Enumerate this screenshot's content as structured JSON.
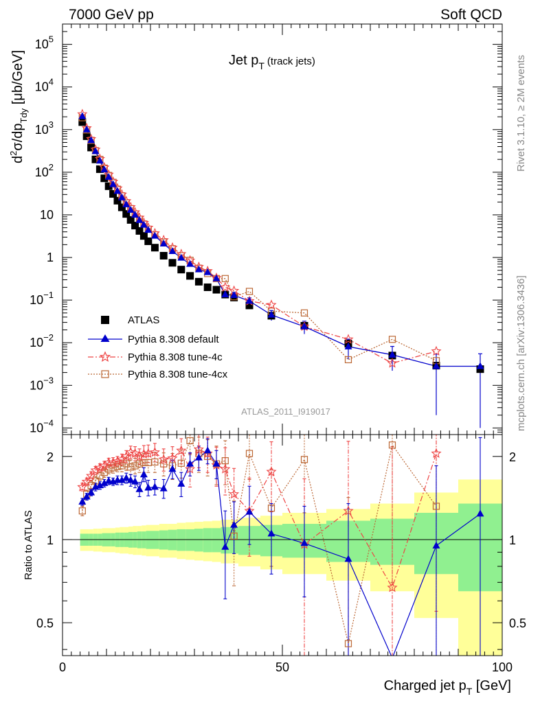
{
  "header": {
    "left": "7000 GeV pp",
    "right": "Soft QCD"
  },
  "side_labels": {
    "rivet": "Rivet 3.1.10, ≥ 2M events",
    "mcplots": "mcplots.cern.ch [arXiv:1306.3436]"
  },
  "colors": {
    "atlas": "#000000",
    "default": "#0000cc",
    "tune4c": "#ee4444",
    "tune4cx": "#bb6633",
    "band_inner": "#90f090",
    "band_outer": "#ffff99"
  },
  "chart_data": [
    {
      "type": "scatter",
      "panel": "main",
      "title": "Jet p_T (track jets)",
      "title_main": "Jet p",
      "title_sub": "T",
      "title_note": "(track jets)",
      "analysis_label": "ATLAS_2011_I919017",
      "ylabel": "d²σ/dp_Tdy [μb/GeV]",
      "ylabel_parts": [
        "d",
        "2",
        "σ/dp",
        "Tdy",
        " [μb/GeV]"
      ],
      "yscale": "log",
      "xlim": [
        0,
        100
      ],
      "ylim": [
        7e-05,
        300000
      ],
      "y_ticks": [
        {
          "value": 100000,
          "mant": "10",
          "exp": "5"
        },
        {
          "value": 10000,
          "mant": "10",
          "exp": "4"
        },
        {
          "value": 1000,
          "mant": "10",
          "exp": "3"
        },
        {
          "value": 100,
          "mant": "10",
          "exp": "2"
        },
        {
          "value": 10,
          "mant": "10",
          "exp": ""
        },
        {
          "value": 1,
          "mant": "1",
          "exp": ""
        },
        {
          "value": 0.1,
          "mant": "10",
          "exp": "−1"
        },
        {
          "value": 0.01,
          "mant": "10",
          "exp": "−2"
        },
        {
          "value": 0.001,
          "mant": "10",
          "exp": "−3"
        },
        {
          "value": 0.0001,
          "mant": "10",
          "exp": "−4"
        }
      ],
      "legend_position": "bottom-left",
      "x": [
        4.5,
        5.5,
        6.5,
        7.5,
        8.5,
        9.5,
        10.5,
        11.5,
        12.5,
        13.5,
        14.5,
        15.5,
        16.5,
        17.5,
        18.5,
        19.5,
        21,
        23,
        25,
        27,
        29,
        31,
        33,
        35,
        37,
        39,
        42.5,
        47.5,
        55,
        65,
        75,
        85,
        95
      ],
      "series": [
        {
          "name": "ATLAS",
          "key": "atlas",
          "marker": "square",
          "values": [
            1500,
            700,
            380,
            200,
            118,
            72,
            47,
            31,
            21.5,
            15,
            10.5,
            7.6,
            5.6,
            4.2,
            3.2,
            2.4,
            1.7,
            1.1,
            0.75,
            0.52,
            0.37,
            0.27,
            0.2,
            0.175,
            0.135,
            0.115,
            0.075,
            0.043,
            0.025,
            0.0095,
            0.005,
            0.0029,
            0.0024
          ]
        },
        {
          "name": "Pythia 8.308 default",
          "key": "default",
          "marker": "triangle",
          "values": [
            2050,
            1000,
            560,
            310,
            185,
            115,
            77,
            52,
            36,
            25.5,
            17.5,
            13,
            10,
            7.5,
            5.8,
            4.4,
            3.2,
            2.1,
            1.4,
            0.98,
            0.7,
            0.52,
            0.45,
            0.32,
            0.135,
            0.13,
            0.095,
            0.045,
            0.024,
            0.0081,
            0.0052,
            0.0028,
            0.0028
          ],
          "err_lo": [
            0,
            0,
            0,
            0,
            0,
            0,
            0,
            0,
            0,
            0,
            0,
            0,
            0,
            0,
            0,
            0,
            0,
            0,
            0,
            0,
            0,
            0,
            0,
            0,
            0.025,
            0.02,
            0.018,
            0.012,
            0.008,
            0.004,
            0.003,
            0.0026,
            0.0027
          ],
          "err_hi": [
            0,
            0,
            0,
            0,
            0,
            0,
            0,
            0,
            0,
            0,
            0,
            0,
            0,
            0,
            0,
            0,
            0,
            0,
            0,
            0,
            0,
            0,
            0,
            0,
            0.025,
            0.02,
            0.018,
            0.012,
            0.008,
            0.004,
            0.003,
            0.0026,
            0.0027
          ],
          "ratio": [
            1.37,
            1.43,
            1.48,
            1.55,
            1.57,
            1.6,
            1.63,
            1.62,
            1.64,
            1.64,
            1.67,
            1.64,
            1.62,
            1.52,
            1.72,
            1.54,
            1.55,
            1.53,
            1.8,
            1.59,
            1.88,
            1.98,
            2.1,
            1.88,
            0.94,
            1.13,
            1.26,
            1.05,
            0.97,
            0.85,
            0,
            0.95,
            1.24
          ],
          "ratio_err": [
            0.04,
            0.04,
            0.04,
            0.05,
            0.05,
            0.05,
            0.05,
            0.05,
            0.06,
            0.06,
            0.07,
            0.08,
            0.08,
            0.09,
            0.1,
            0.1,
            0.1,
            0.12,
            0.14,
            0.16,
            0.18,
            0.2,
            0.22,
            0.22,
            0.33,
            0.24,
            0.3,
            0.3,
            0.35,
            0.5,
            0,
            0.9,
            1.1
          ]
        },
        {
          "name": "Pythia 8.308 tune-4c",
          "key": "tune4c",
          "marker": "star",
          "values": [
            2300,
            1080,
            600,
            340,
            205,
            130,
            88,
            60,
            42,
            30,
            21,
            15.2,
            11.5,
            8.6,
            6.5,
            5,
            3.7,
            2.55,
            1.7,
            1.2,
            0.85,
            0.6,
            0.48,
            0.33,
            0.2,
            0.165,
            0.095,
            0.077,
            0.024,
            0.012,
            0.0033,
            0.0063,
            0.0
          ],
          "ratio": [
            1.55,
            1.62,
            1.7,
            1.78,
            1.82,
            1.85,
            1.9,
            1.9,
            1.92,
            1.95,
            2.0,
            2.07,
            2.05,
            2.0,
            2.04,
            2.05,
            2.07,
            1.95,
            1.97,
            2.1,
            1.8,
            2.12,
            2.05,
            1.86,
            1.8,
            1.46,
            1.27,
            1.76,
            0.96,
            1.27,
            0.67,
            2.05,
            0
          ],
          "ratio_err": [
            0.05,
            0.05,
            0.06,
            0.06,
            0.06,
            0.07,
            0.07,
            0.08,
            0.08,
            0.09,
            0.1,
            0.11,
            0.12,
            0.13,
            0.15,
            0.15,
            0.16,
            0.18,
            0.2,
            0.22,
            0.25,
            0.3,
            0.3,
            0.3,
            0.35,
            0.35,
            0.4,
            0.5,
            0.7,
            1.0,
            1.5,
            1.5,
            0
          ]
        },
        {
          "name": "Pythia 8.308 tune-4cx",
          "key": "tune4cx",
          "marker": "open-square",
          "values": [
            1900,
            980,
            560,
            320,
            200,
            125,
            84,
            58,
            40,
            28,
            19,
            14,
            10.5,
            7.9,
            6.1,
            4.6,
            3.4,
            2.3,
            1.6,
            1.1,
            0.86,
            0.56,
            0.42,
            0.32,
            0.32,
            0.12,
            0.16,
            0.055,
            0.05,
            0.004,
            0.012,
            0.0038,
            0
          ],
          "ratio": [
            1.27,
            1.46,
            1.57,
            1.63,
            1.7,
            1.75,
            1.8,
            1.82,
            1.84,
            1.85,
            1.88,
            1.83,
            1.85,
            1.88,
            1.9,
            1.9,
            1.91,
            1.88,
            1.85,
            1.89,
            2.28,
            2.05,
            2.0,
            1.88,
            1.93,
            1.03,
            2.05,
            1.3,
            1.95,
            0.42,
            2.2,
            1.32,
            0
          ],
          "ratio_err": [
            0.05,
            0.05,
            0.06,
            0.06,
            0.06,
            0.07,
            0.07,
            0.08,
            0.08,
            0.09,
            0.1,
            0.11,
            0.12,
            0.13,
            0.15,
            0.15,
            0.16,
            0.18,
            0.2,
            0.22,
            0.25,
            0.3,
            0.3,
            0.3,
            0.35,
            0.35,
            0.4,
            0.5,
            0.7,
            1.0,
            1.5,
            1.5,
            0
          ]
        }
      ]
    },
    {
      "type": "scatter",
      "panel": "ratio",
      "ylabel": "Ratio to ATLAS",
      "yscale": "log",
      "xlabel": "Charged jet p_T [GeV]",
      "xlabel_main": "Charged jet p",
      "xlabel_sub": "T",
      "xlabel_unit": " [GeV]",
      "xlim": [
        0,
        100
      ],
      "ylim": [
        0.38,
        2.4
      ],
      "y_tick_labels": [
        {
          "value": 2,
          "label": "2"
        },
        {
          "value": 1,
          "label": "1"
        },
        {
          "value": 0.5,
          "label": "0.5"
        }
      ],
      "x_tick_labels": [
        {
          "value": 0,
          "label": "0"
        },
        {
          "value": 50,
          "label": "50"
        },
        {
          "value": 100,
          "label": "100"
        }
      ],
      "band_edges": [
        4,
        5,
        6,
        7,
        8,
        9,
        10,
        11,
        12,
        13,
        14,
        15,
        16,
        17,
        18,
        19,
        20,
        22,
        24,
        26,
        28,
        30,
        32,
        34,
        36,
        38,
        40,
        45,
        50,
        60,
        70,
        80,
        90,
        100
      ],
      "band_inner": [
        0.05,
        0.05,
        0.05,
        0.05,
        0.05,
        0.055,
        0.055,
        0.055,
        0.06,
        0.06,
        0.06,
        0.065,
        0.065,
        0.07,
        0.07,
        0.075,
        0.075,
        0.08,
        0.085,
        0.09,
        0.09,
        0.095,
        0.1,
        0.1,
        0.11,
        0.11,
        0.12,
        0.13,
        0.14,
        0.17,
        0.19,
        0.25,
        0.35
      ],
      "band_outer": [
        0.09,
        0.09,
        0.09,
        0.095,
        0.095,
        0.1,
        0.1,
        0.1,
        0.105,
        0.11,
        0.11,
        0.115,
        0.12,
        0.12,
        0.125,
        0.13,
        0.13,
        0.14,
        0.14,
        0.15,
        0.155,
        0.16,
        0.165,
        0.17,
        0.18,
        0.18,
        0.2,
        0.22,
        0.25,
        0.29,
        0.35,
        0.48,
        0.65
      ]
    }
  ]
}
